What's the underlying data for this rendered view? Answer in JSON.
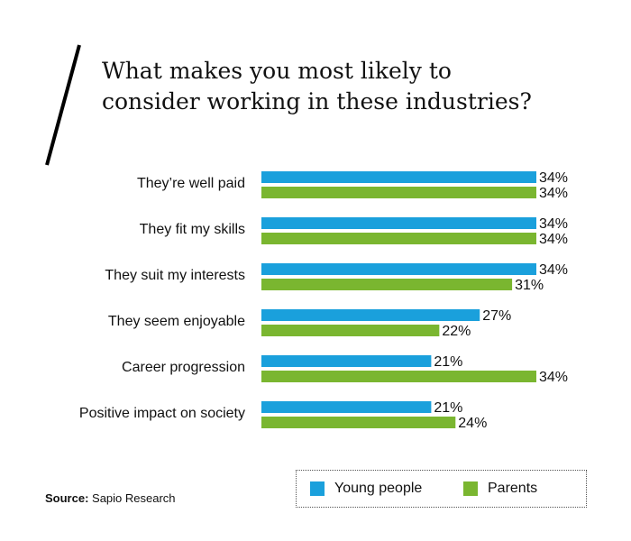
{
  "title_line1": "What makes you most likely to",
  "title_line2": "consider working in these industries?",
  "source_label": "Source:",
  "source_text": "Sapio Research",
  "colors": {
    "young": "#1aa0dc",
    "parents": "#7ab630",
    "text": "#111111"
  },
  "legend": [
    {
      "name": "Young people",
      "color": "#1aa0dc"
    },
    {
      "name": "Parents",
      "color": "#7ab630"
    }
  ],
  "chart_data": {
    "type": "bar",
    "orientation": "horizontal",
    "title": "What makes you most likely to consider working in these industries?",
    "categories": [
      "They’re well paid",
      "They fit my skills",
      "They suit my interests",
      "They seem enjoyable",
      "Career progression",
      "Positive impact on society"
    ],
    "series": [
      {
        "name": "Young people",
        "values": [
          34,
          34,
          34,
          27,
          21,
          21
        ],
        "labels": [
          "34%",
          "34%",
          "34%",
          "27%",
          "21%",
          "21%"
        ]
      },
      {
        "name": "Parents",
        "values": [
          34,
          34,
          31,
          22,
          34,
          24
        ],
        "labels": [
          "34%",
          "34%",
          "31%",
          "22%",
          "34%",
          "24%"
        ]
      }
    ],
    "unit": "%",
    "xlim": [
      0,
      34
    ],
    "grid": false,
    "legend_position": "bottom-right"
  }
}
